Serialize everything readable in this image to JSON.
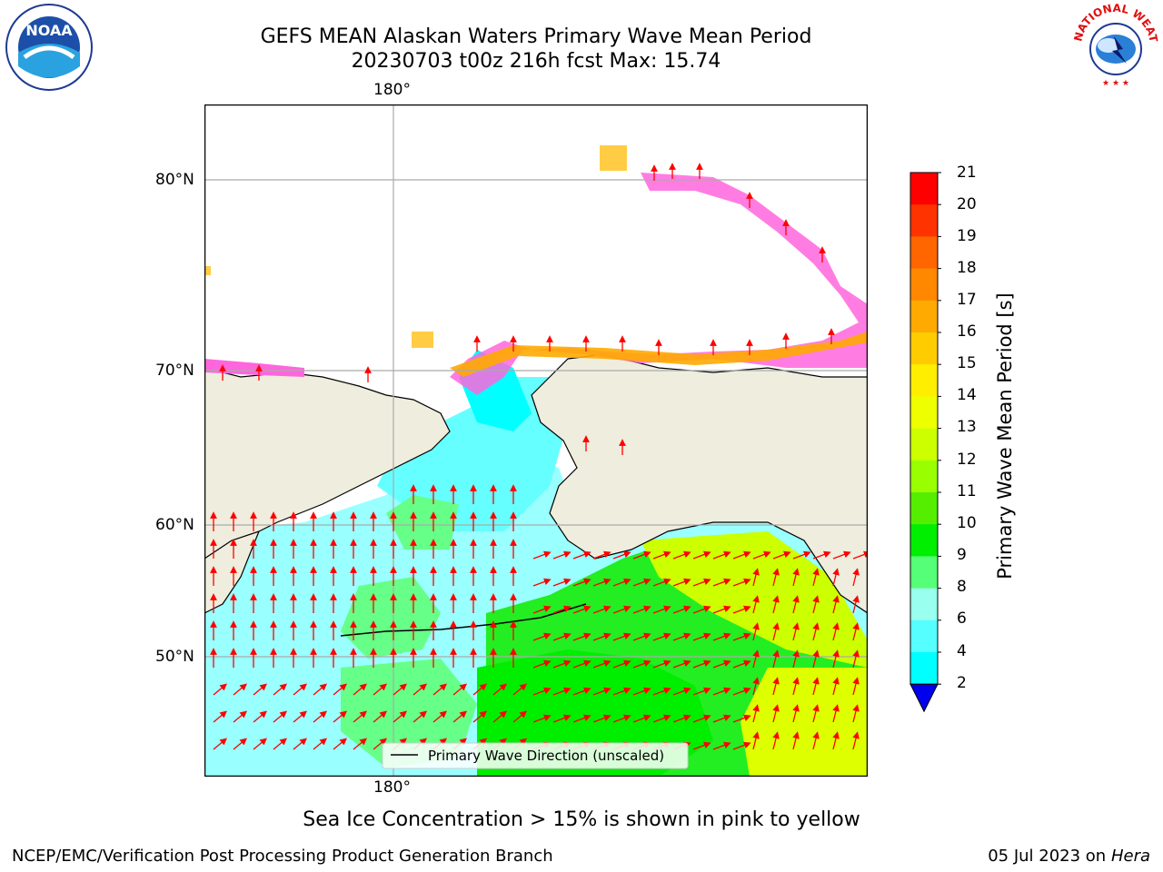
{
  "header": {
    "title_line1": "GEFS MEAN Alaskan Waters Primary Wave Mean Period",
    "title_line2": "20230703 t00z 216h fcst   Max: 15.74"
  },
  "logos": {
    "left": "NOAA",
    "right_text": "NATIONAL WEATHER SERVICE"
  },
  "map": {
    "lon_label_top": "180°",
    "lon_label_bottom": "180°",
    "lat_labels": [
      "80°N",
      "70°N",
      "60°N",
      "50°N"
    ],
    "legend_label": "Primary Wave Direction (unscaled)"
  },
  "colorbar": {
    "label": "Primary Wave Mean Period [s]",
    "ticks": [
      "21",
      "20",
      "19",
      "18",
      "17",
      "16",
      "15",
      "14",
      "13",
      "12",
      "11",
      "10",
      "9",
      "8",
      "6",
      "4",
      "2"
    ],
    "colors": [
      "#ff0000",
      "#ff3300",
      "#ff6600",
      "#ff8800",
      "#ffaa00",
      "#ffcc00",
      "#ffee00",
      "#eeff00",
      "#ccff00",
      "#99ff00",
      "#55ee00",
      "#00ee00",
      "#55ff77",
      "#99ffee",
      "#55ffff",
      "#00ffff",
      "#00bbff",
      "#0066ff",
      "#0000ee"
    ]
  },
  "caption": "Sea Ice Concentration > 15% is shown in pink to yellow",
  "footer": {
    "left": "NCEP/EMC/Verification Post Processing Product Generation Branch",
    "right_date": "05 Jul 2023 on",
    "right_machine": "Hera"
  }
}
